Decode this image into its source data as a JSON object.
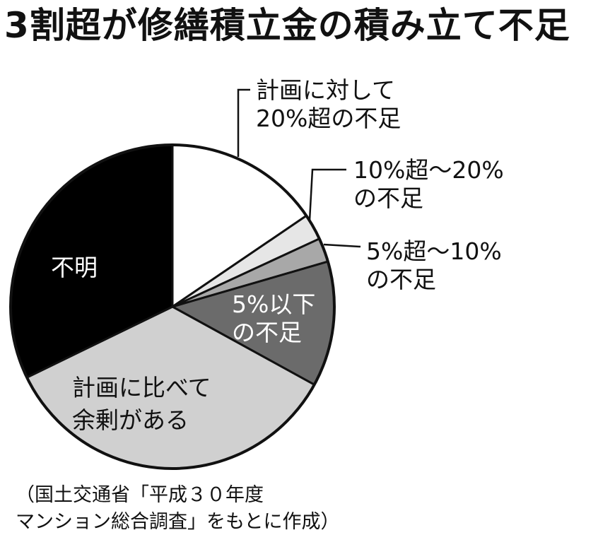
{
  "title": "3割超が修繕積立金の積み立て不足",
  "source": {
    "line1": "（国土交通省「平成３０年度",
    "line2": "マンション総合調査」をもとに作成）"
  },
  "chart_data": {
    "type": "pie",
    "slices": [
      {
        "label_lines": [
          "計画に対して",
          "20%超の不足"
        ],
        "value": 15.5,
        "color": "#ffffff"
      },
      {
        "label_lines": [
          "10%超～20%",
          "の不足"
        ],
        "value": 2.6,
        "color": "#e6e6e6"
      },
      {
        "label_lines": [
          "5%超～10%",
          "の不足"
        ],
        "value": 2.4,
        "color": "#a8a8a8"
      },
      {
        "label_lines": [
          "5%以下",
          "の不足"
        ],
        "value": 12.5,
        "color": "#6b6b6b"
      },
      {
        "label_lines": [
          "計画に比べて",
          "余剰がある"
        ],
        "value": 34.8,
        "color": "#d0d0d0"
      },
      {
        "label_lines": [
          "不明"
        ],
        "value": 32.2,
        "color": "#000000"
      }
    ]
  }
}
